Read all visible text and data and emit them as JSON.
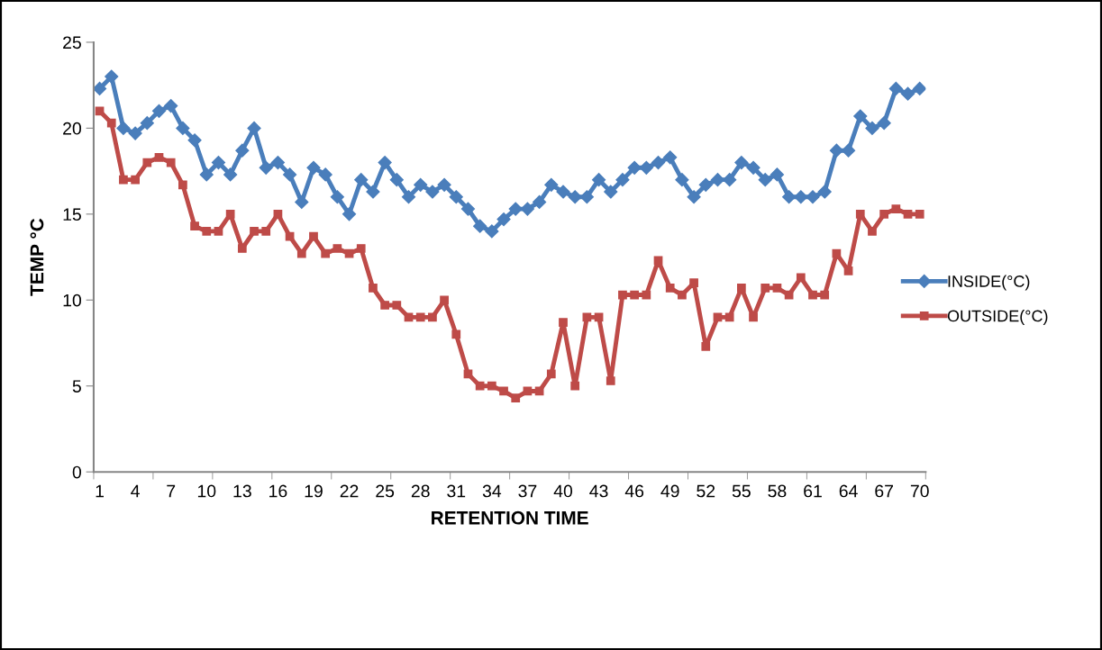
{
  "chart_data": {
    "type": "line",
    "xlabel": "RETENTION TIME",
    "ylabel": "TEMP °C",
    "categories": [
      "1",
      null,
      null,
      "4",
      null,
      null,
      "7",
      null,
      null,
      "10",
      null,
      null,
      "13",
      null,
      null,
      "16",
      null,
      null,
      "19",
      null,
      null,
      "22",
      null,
      null,
      "25",
      null,
      null,
      "28",
      null,
      null,
      "31",
      null,
      null,
      "34",
      null,
      null,
      "37",
      null,
      null,
      "40",
      null,
      null,
      "43",
      null,
      null,
      "46",
      null,
      null,
      "49",
      null,
      null,
      "52",
      null,
      null,
      "55",
      null,
      null,
      "58",
      null,
      null,
      "61",
      null,
      null,
      "64",
      null,
      null,
      "67",
      null,
      null,
      "70"
    ],
    "series": [
      {
        "name": "INSIDE(°C)",
        "color": "#4a7ebb",
        "marker": "diamond",
        "values": [
          22.3,
          23,
          20,
          19.7,
          20.3,
          21,
          21.3,
          20,
          19.3,
          17.3,
          18,
          17.3,
          18.7,
          20,
          17.7,
          18,
          17.3,
          15.7,
          17.7,
          17.3,
          16,
          15,
          17,
          16.3,
          18,
          17,
          16,
          16.7,
          16.3,
          16.7,
          16,
          15.3,
          14.3,
          14,
          14.7,
          15.3,
          15.3,
          15.7,
          16.7,
          16.3,
          16,
          16,
          17,
          16.3,
          17,
          17.7,
          17.7,
          18,
          18.3,
          17,
          16,
          16.7,
          17,
          17,
          18,
          17.7,
          17,
          17.3,
          16,
          16,
          16,
          16.3,
          18.7,
          18.7,
          20.7,
          20,
          20.3,
          22.3,
          22,
          22.3
        ]
      },
      {
        "name": "OUTSIDE(°C)",
        "color": "#be4b48",
        "marker": "square",
        "values": [
          21,
          20.3,
          17,
          17,
          18,
          18.3,
          18,
          16.7,
          14.3,
          14,
          14,
          15,
          13,
          14,
          14,
          15,
          13.7,
          12.7,
          13.7,
          12.7,
          13,
          12.7,
          13,
          10.7,
          9.7,
          9.7,
          9,
          9,
          9,
          10,
          8,
          5.7,
          5,
          5,
          4.7,
          4.3,
          4.7,
          4.7,
          5.7,
          8.7,
          5,
          9,
          9,
          5.3,
          10.3,
          10.3,
          10.3,
          12.3,
          10.7,
          10.3,
          11,
          7.3,
          9,
          9,
          10.7,
          9,
          10.7,
          10.7,
          10.3,
          11.3,
          10.3,
          10.3,
          12.7,
          11.7,
          15,
          14,
          15,
          15.3,
          15,
          15
        ]
      }
    ],
    "ylim": [
      0,
      25
    ],
    "yticks": [
      0,
      5,
      10,
      15,
      20,
      25
    ],
    "grid": false,
    "legend": "right",
    "line_style": "solid"
  }
}
